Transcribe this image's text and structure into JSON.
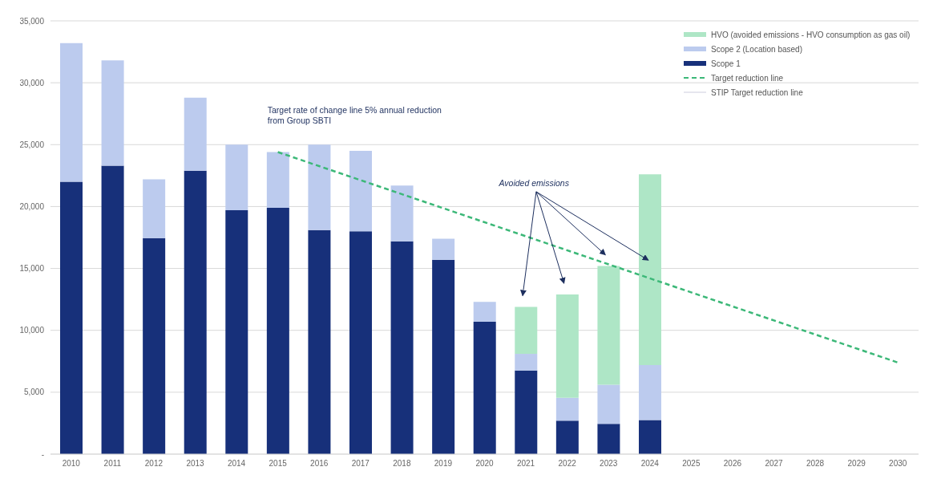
{
  "chart_data": {
    "type": "bar",
    "stacked": true,
    "categories": [
      "2010",
      "2011",
      "2012",
      "2013",
      "2014",
      "2015",
      "2016",
      "2017",
      "2018",
      "2019",
      "2020",
      "2021",
      "2022",
      "2023",
      "2024",
      "2025",
      "2026",
      "2027",
      "2028",
      "2029",
      "2030"
    ],
    "series": [
      {
        "name": "Scope 1",
        "color": "#17307a",
        "values": [
          22000,
          23300,
          17450,
          22900,
          19700,
          19900,
          18100,
          18000,
          17200,
          15700,
          10700,
          6750,
          2700,
          2450,
          2750,
          null,
          null,
          null,
          null,
          null,
          null
        ]
      },
      {
        "name": "Scope 2 (Location based)",
        "color": "#bccbee",
        "values": [
          11200,
          8500,
          4750,
          5900,
          5300,
          4500,
          6900,
          6500,
          4500,
          1700,
          1600,
          1350,
          1850,
          3150,
          4450,
          null,
          null,
          null,
          null,
          null,
          null
        ]
      },
      {
        "name": "HVO (avoided emissions - HVO consumption as gas oil)",
        "color": "#aee6c6",
        "values": [
          null,
          null,
          null,
          null,
          null,
          null,
          null,
          null,
          null,
          null,
          null,
          3800,
          8350,
          9600,
          15400,
          null,
          null,
          null,
          null,
          null,
          null
        ]
      },
      {
        "name": "Target reduction line",
        "type": "line",
        "line_style": "dashed",
        "color": "#3cb878",
        "values": [
          null,
          null,
          null,
          null,
          null,
          24400,
          null,
          null,
          null,
          null,
          null,
          null,
          null,
          null,
          null,
          null,
          null,
          null,
          null,
          null,
          7400
        ]
      },
      {
        "name": "STIP Target reduction line",
        "type": "line",
        "line_style": "solid",
        "color": "#e6e6ee",
        "values": [
          null,
          null,
          null,
          null,
          null,
          null,
          null,
          null,
          null,
          null,
          null,
          null,
          null,
          null,
          null,
          null,
          null,
          null,
          null,
          null,
          null
        ]
      }
    ],
    "ylim": [
      0,
      35000
    ],
    "yticks": [
      {
        "value": 0,
        "label": "-"
      },
      {
        "value": 5000,
        "label": "5,000"
      },
      {
        "value": 10000,
        "label": "10,000"
      },
      {
        "value": 15000,
        "label": "15,000"
      },
      {
        "value": 20000,
        "label": "20,000"
      },
      {
        "value": 25000,
        "label": "25,000"
      },
      {
        "value": 30000,
        "label": "30,000"
      },
      {
        "value": 35000,
        "label": "35,000"
      }
    ],
    "grid": "y",
    "legend": "top right",
    "marker": "none",
    "annotations": [
      "Target rate of change line 5% annual reduction from Group SBTI",
      "Avoided emissions"
    ]
  }
}
